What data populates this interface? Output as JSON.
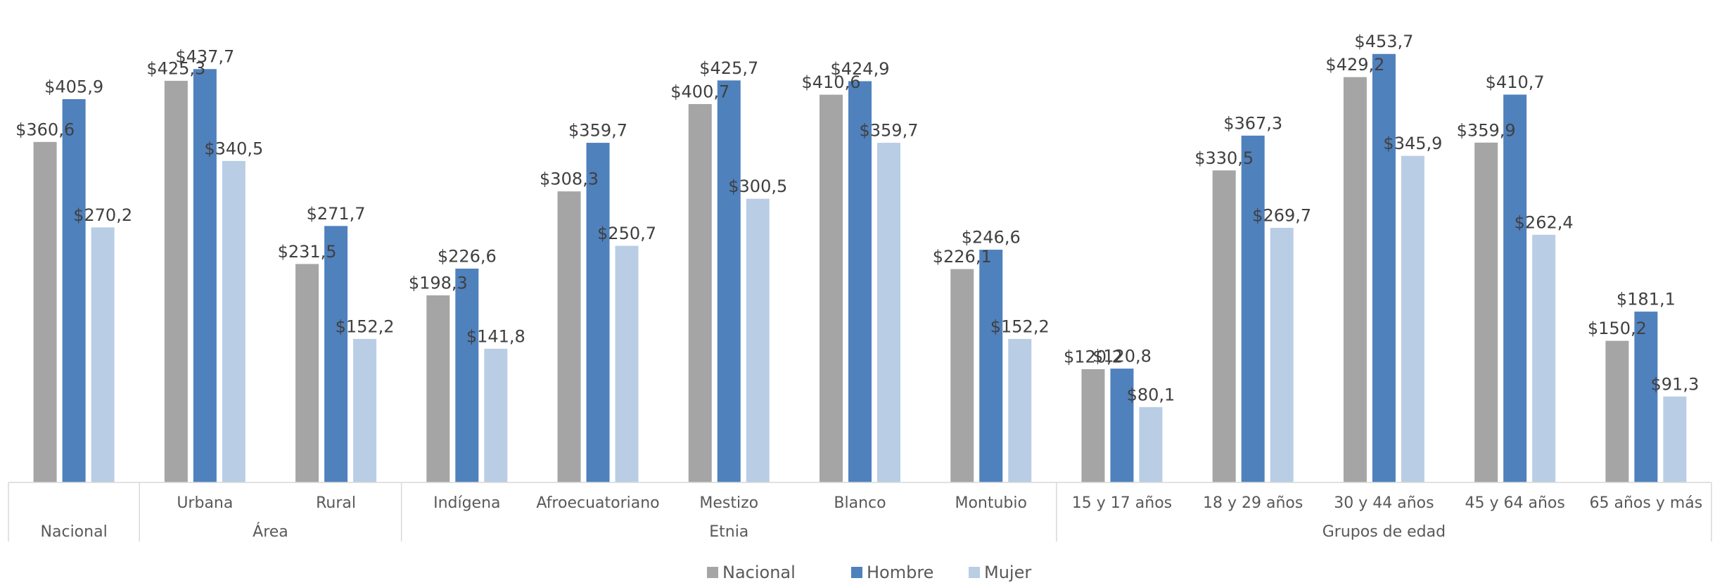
{
  "chart_data": {
    "type": "bar",
    "categories": [
      {
        "label": "",
        "group": "Nacional"
      },
      {
        "label": "Urbana",
        "group": "Área"
      },
      {
        "label": "Rural",
        "group": "Área"
      },
      {
        "label": "Indígena",
        "group": "Etnia"
      },
      {
        "label": "Afroecuatoriano",
        "group": "Etnia"
      },
      {
        "label": "Mestizo",
        "group": "Etnia"
      },
      {
        "label": "Blanco",
        "group": "Etnia"
      },
      {
        "label": "Montubio",
        "group": "Etnia"
      },
      {
        "label": "15 y 17 años",
        "group": "Grupos de edad"
      },
      {
        "label": "18 y 29 años",
        "group": "Grupos de edad"
      },
      {
        "label": "30 y 44 años",
        "group": "Grupos de edad"
      },
      {
        "label": "45 y 64 años",
        "group": "Grupos de edad"
      },
      {
        "label": "65 años y más",
        "group": "Grupos de edad"
      }
    ],
    "groups": [
      "Nacional",
      "Área",
      "Etnia",
      "Grupos de edad"
    ],
    "series": [
      {
        "name": "Nacional",
        "color": "#A5A5A5",
        "values": [
          360.6,
          425.3,
          231.5,
          198.3,
          308.3,
          400.7,
          410.6,
          226.1,
          120.2,
          330.5,
          429.2,
          359.9,
          150.2
        ],
        "labels": [
          "$360,6",
          "$425,3",
          "$231,5",
          "$198,3",
          "$308,3",
          "$400,7",
          "$410,6",
          "$226,1",
          "$120,2",
          "$330,5",
          "$429,2",
          "$359,9",
          "$150,2"
        ]
      },
      {
        "name": "Hombre",
        "color": "#4F81BD",
        "values": [
          405.9,
          437.7,
          271.7,
          226.6,
          359.7,
          425.7,
          424.9,
          246.6,
          120.8,
          367.3,
          453.7,
          410.7,
          181.1
        ],
        "labels": [
          "$405,9",
          "$437,7",
          "$271,7",
          "$226,6",
          "$359,7",
          "$425,7",
          "$424,9",
          "$246,6",
          "$120,8",
          "$367,3",
          "$453,7",
          "$410,7",
          "$181,1"
        ]
      },
      {
        "name": "Mujer",
        "color": "#B9CDE5",
        "values": [
          270.2,
          340.5,
          152.2,
          141.8,
          250.7,
          300.5,
          359.7,
          152.2,
          80.1,
          269.7,
          345.9,
          262.4,
          91.3
        ],
        "labels": [
          "$270,2",
          "$340,5",
          "$152,2",
          "$141,8",
          "$250,7",
          "$300,5",
          "$359,7",
          "$152,2",
          "$80,1",
          "$269,7",
          "$345,9",
          "$262,4",
          "$91,3"
        ]
      }
    ],
    "title": "",
    "xlabel": "",
    "ylabel": "",
    "ylim": [
      0,
      480
    ],
    "grid": false,
    "legend": "bottom"
  }
}
